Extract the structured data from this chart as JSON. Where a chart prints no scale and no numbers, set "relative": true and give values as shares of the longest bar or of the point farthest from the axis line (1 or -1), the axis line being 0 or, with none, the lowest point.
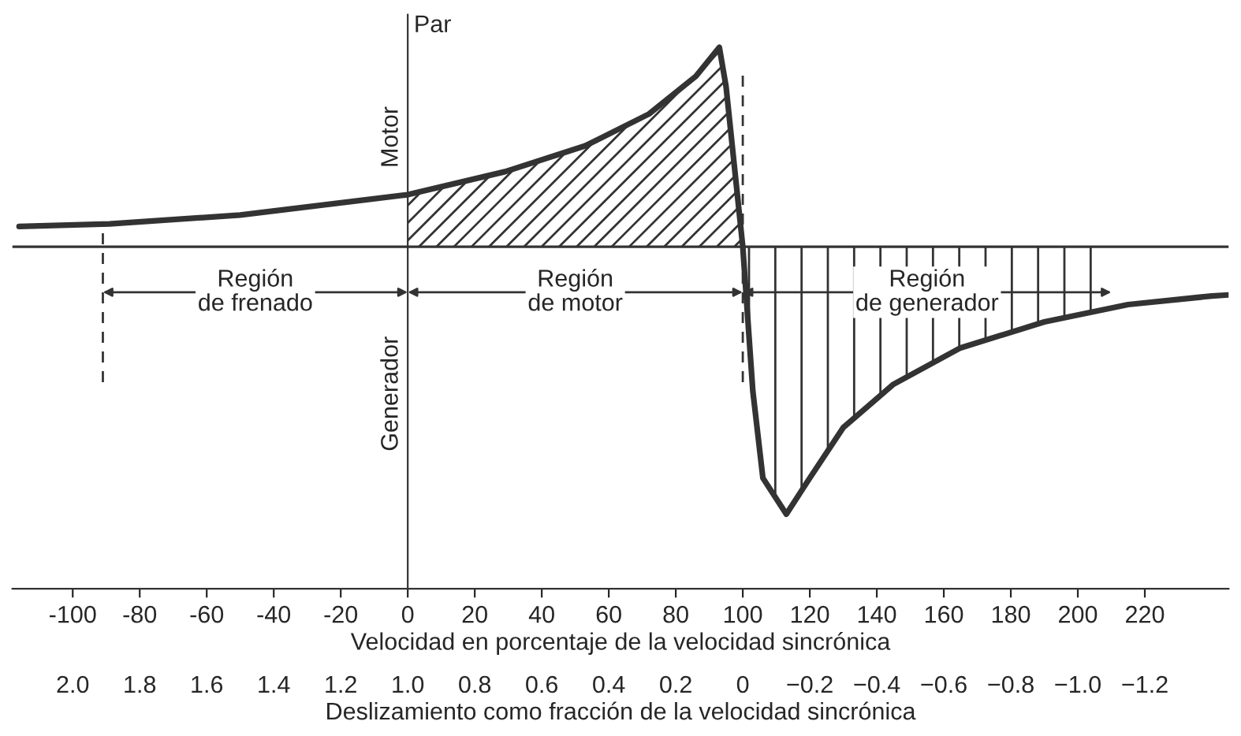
{
  "chart_data": {
    "type": "line",
    "relative": true,
    "xlabel": "Velocidad en porcentaje de la velocidad sincrónica",
    "x2label": "Deslizamiento como fracción de la velocidad sincrónica",
    "ylabel": "Par",
    "annotations": [
      "Motor",
      "Generador",
      "Región\nde frenado",
      "Región\nde motor",
      "Región\nde generador"
    ],
    "x": [
      -116,
      -89,
      -50,
      0,
      29,
      53,
      72,
      86,
      93,
      95,
      100,
      103,
      106,
      113,
      120,
      130,
      145,
      165,
      190,
      215,
      240,
      245
    ],
    "series": [
      {
        "color": "#333333",
        "values": [
          0.076,
          0.086,
          0.119,
          0.195,
          0.281,
          0.378,
          0.497,
          0.638,
          0.746,
          0.6,
          0,
          -0.54,
          -0.865,
          -1,
          -0.865,
          -0.676,
          -0.514,
          -0.378,
          -0.281,
          -0.216,
          -0.184,
          -0.18
        ]
      }
    ],
    "xlim": [
      -118,
      245
    ],
    "xticks": [
      -100,
      -80,
      -60,
      -40,
      -20,
      0,
      20,
      40,
      60,
      80,
      100,
      120,
      140,
      160,
      180,
      200,
      220
    ],
    "x2lim": [
      2.18,
      -1.45
    ],
    "x2ticks": [
      {
        "value": 2,
        "label": "2.0"
      },
      1.8,
      1.6,
      1.4,
      1.2,
      {
        "value": 1,
        "label": "1.0"
      },
      0.8,
      0.6,
      0.4,
      0.2,
      0,
      {
        "value": -0.2,
        "label": "−0.2"
      },
      {
        "value": -0.4,
        "label": "−0.4"
      },
      {
        "value": -0.6,
        "label": "−0.6"
      },
      {
        "value": -0.8,
        "label": "−0.8"
      },
      {
        "value": -1,
        "label": "−1.0"
      },
      {
        "value": -1.2,
        "label": "−1.2"
      }
    ],
    "ref_lines": [
      {
        "axis": "x",
        "value": -91,
        "line_style": "dashed",
        "color": "#333333"
      },
      {
        "axis": "x",
        "value": 100,
        "line_style": "dashed",
        "color": "#333333"
      }
    ]
  }
}
